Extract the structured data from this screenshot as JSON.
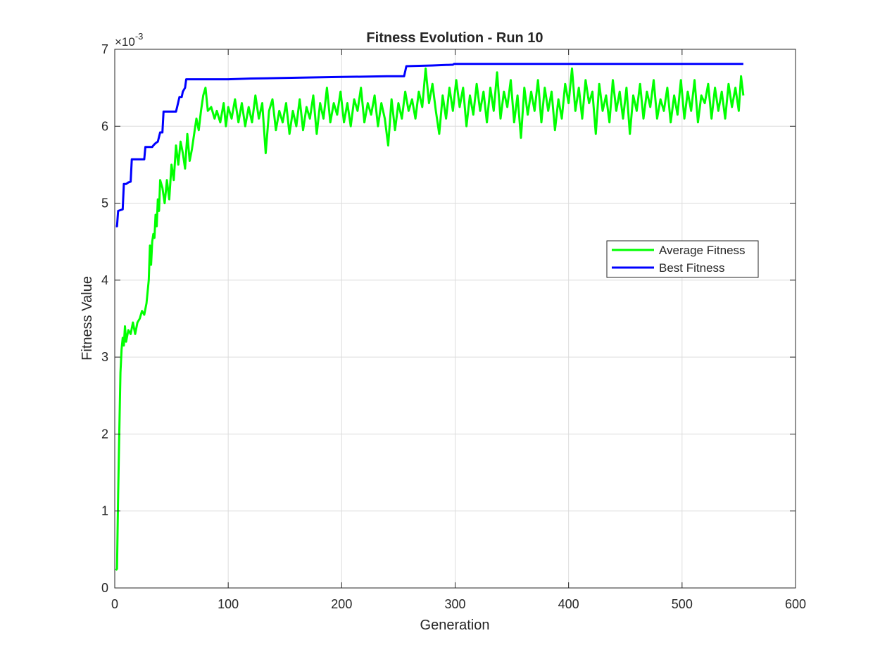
{
  "chart_data": {
    "type": "line",
    "title": "Fitness Evolution - Run 10",
    "xlabel": "Generation",
    "ylabel": "Fitness Value",
    "exponent_label": "×10",
    "exponent_power": "-3",
    "xlim": [
      0,
      600
    ],
    "ylim": [
      0,
      7
    ],
    "xticks": [
      0,
      100,
      200,
      300,
      400,
      500,
      600
    ],
    "yticks": [
      0,
      1,
      2,
      3,
      4,
      5,
      6,
      7
    ],
    "grid": true,
    "legend_position": "right-middle",
    "y_units_note": "values shown in units of 1e-3",
    "series": [
      {
        "name": "Average Fitness",
        "color": "#00ff00",
        "points": [
          [
            1,
            0.23
          ],
          [
            2,
            0.25
          ],
          [
            3,
            1.2
          ],
          [
            4,
            2.0
          ],
          [
            5,
            2.8
          ],
          [
            6,
            3.1
          ],
          [
            7,
            3.25
          ],
          [
            8,
            3.15
          ],
          [
            9,
            3.4
          ],
          [
            10,
            3.2
          ],
          [
            12,
            3.35
          ],
          [
            14,
            3.3
          ],
          [
            16,
            3.45
          ],
          [
            18,
            3.3
          ],
          [
            20,
            3.45
          ],
          [
            22,
            3.5
          ],
          [
            24,
            3.6
          ],
          [
            26,
            3.55
          ],
          [
            28,
            3.7
          ],
          [
            30,
            4.0
          ],
          [
            31,
            4.45
          ],
          [
            32,
            4.2
          ],
          [
            33,
            4.5
          ],
          [
            34,
            4.6
          ],
          [
            35,
            4.55
          ],
          [
            36,
            4.85
          ],
          [
            37,
            4.7
          ],
          [
            38,
            5.05
          ],
          [
            39,
            4.9
          ],
          [
            40,
            5.3
          ],
          [
            42,
            5.2
          ],
          [
            44,
            5.0
          ],
          [
            46,
            5.3
          ],
          [
            48,
            5.05
          ],
          [
            50,
            5.5
          ],
          [
            52,
            5.3
          ],
          [
            54,
            5.75
          ],
          [
            56,
            5.5
          ],
          [
            58,
            5.8
          ],
          [
            60,
            5.65
          ],
          [
            62,
            5.45
          ],
          [
            64,
            5.9
          ],
          [
            66,
            5.55
          ],
          [
            68,
            5.7
          ],
          [
            70,
            5.9
          ],
          [
            72,
            6.1
          ],
          [
            74,
            5.95
          ],
          [
            76,
            6.2
          ],
          [
            78,
            6.4
          ],
          [
            80,
            6.5
          ],
          [
            82,
            6.2
          ],
          [
            85,
            6.25
          ],
          [
            88,
            6.1
          ],
          [
            90,
            6.2
          ],
          [
            93,
            6.05
          ],
          [
            96,
            6.3
          ],
          [
            98,
            6.0
          ],
          [
            100,
            6.25
          ],
          [
            103,
            6.1
          ],
          [
            106,
            6.35
          ],
          [
            109,
            6.05
          ],
          [
            112,
            6.3
          ],
          [
            115,
            6.0
          ],
          [
            118,
            6.25
          ],
          [
            121,
            6.05
          ],
          [
            124,
            6.4
          ],
          [
            127,
            6.1
          ],
          [
            130,
            6.3
          ],
          [
            133,
            5.65
          ],
          [
            136,
            6.2
          ],
          [
            139,
            6.35
          ],
          [
            142,
            5.95
          ],
          [
            145,
            6.2
          ],
          [
            148,
            6.05
          ],
          [
            151,
            6.3
          ],
          [
            154,
            5.9
          ],
          [
            157,
            6.2
          ],
          [
            160,
            6.0
          ],
          [
            163,
            6.35
          ],
          [
            166,
            5.95
          ],
          [
            169,
            6.25
          ],
          [
            172,
            6.1
          ],
          [
            175,
            6.4
          ],
          [
            178,
            5.9
          ],
          [
            181,
            6.3
          ],
          [
            184,
            6.1
          ],
          [
            187,
            6.5
          ],
          [
            190,
            6.05
          ],
          [
            193,
            6.3
          ],
          [
            196,
            6.15
          ],
          [
            199,
            6.45
          ],
          [
            202,
            6.05
          ],
          [
            205,
            6.3
          ],
          [
            208,
            6.0
          ],
          [
            211,
            6.35
          ],
          [
            214,
            6.2
          ],
          [
            217,
            6.5
          ],
          [
            220,
            6.05
          ],
          [
            223,
            6.3
          ],
          [
            226,
            6.15
          ],
          [
            229,
            6.4
          ],
          [
            232,
            6.0
          ],
          [
            235,
            6.3
          ],
          [
            238,
            6.1
          ],
          [
            241,
            5.75
          ],
          [
            244,
            6.35
          ],
          [
            247,
            5.95
          ],
          [
            250,
            6.3
          ],
          [
            253,
            6.1
          ],
          [
            256,
            6.45
          ],
          [
            259,
            6.2
          ],
          [
            262,
            6.35
          ],
          [
            265,
            6.1
          ],
          [
            268,
            6.45
          ],
          [
            271,
            6.25
          ],
          [
            274,
            6.75
          ],
          [
            277,
            6.3
          ],
          [
            280,
            6.55
          ],
          [
            283,
            6.2
          ],
          [
            286,
            5.9
          ],
          [
            289,
            6.4
          ],
          [
            292,
            6.1
          ],
          [
            295,
            6.5
          ],
          [
            298,
            6.2
          ],
          [
            301,
            6.6
          ],
          [
            304,
            6.25
          ],
          [
            307,
            6.5
          ],
          [
            310,
            6.0
          ],
          [
            313,
            6.4
          ],
          [
            316,
            6.15
          ],
          [
            319,
            6.55
          ],
          [
            322,
            6.2
          ],
          [
            325,
            6.45
          ],
          [
            328,
            6.05
          ],
          [
            331,
            6.5
          ],
          [
            334,
            6.2
          ],
          [
            337,
            6.7
          ],
          [
            340,
            6.1
          ],
          [
            343,
            6.45
          ],
          [
            346,
            6.25
          ],
          [
            349,
            6.6
          ],
          [
            352,
            6.05
          ],
          [
            355,
            6.4
          ],
          [
            358,
            5.85
          ],
          [
            361,
            6.5
          ],
          [
            364,
            6.15
          ],
          [
            367,
            6.45
          ],
          [
            370,
            6.2
          ],
          [
            373,
            6.6
          ],
          [
            376,
            6.05
          ],
          [
            379,
            6.5
          ],
          [
            382,
            6.2
          ],
          [
            385,
            6.45
          ],
          [
            388,
            5.95
          ],
          [
            391,
            6.35
          ],
          [
            394,
            6.1
          ],
          [
            397,
            6.55
          ],
          [
            400,
            6.3
          ],
          [
            403,
            6.75
          ],
          [
            406,
            6.2
          ],
          [
            409,
            6.5
          ],
          [
            412,
            6.1
          ],
          [
            415,
            6.6
          ],
          [
            418,
            6.3
          ],
          [
            421,
            6.45
          ],
          [
            424,
            5.9
          ],
          [
            427,
            6.55
          ],
          [
            430,
            6.2
          ],
          [
            433,
            6.4
          ],
          [
            436,
            6.05
          ],
          [
            439,
            6.6
          ],
          [
            442,
            6.2
          ],
          [
            445,
            6.45
          ],
          [
            448,
            6.1
          ],
          [
            451,
            6.5
          ],
          [
            454,
            5.9
          ],
          [
            457,
            6.4
          ],
          [
            460,
            6.2
          ],
          [
            463,
            6.55
          ],
          [
            466,
            6.1
          ],
          [
            469,
            6.45
          ],
          [
            472,
            6.25
          ],
          [
            475,
            6.6
          ],
          [
            478,
            6.1
          ],
          [
            481,
            6.35
          ],
          [
            484,
            6.2
          ],
          [
            487,
            6.5
          ],
          [
            490,
            6.05
          ],
          [
            493,
            6.4
          ],
          [
            496,
            6.15
          ],
          [
            499,
            6.6
          ],
          [
            502,
            6.1
          ],
          [
            505,
            6.45
          ],
          [
            508,
            6.2
          ],
          [
            511,
            6.6
          ],
          [
            514,
            6.05
          ],
          [
            517,
            6.4
          ],
          [
            520,
            6.3
          ],
          [
            523,
            6.55
          ],
          [
            526,
            6.1
          ],
          [
            529,
            6.5
          ],
          [
            532,
            6.2
          ],
          [
            535,
            6.45
          ],
          [
            538,
            6.1
          ],
          [
            541,
            6.55
          ],
          [
            544,
            6.25
          ],
          [
            547,
            6.5
          ],
          [
            550,
            6.2
          ],
          [
            552,
            6.65
          ],
          [
            554,
            6.4
          ]
        ]
      },
      {
        "name": "Best Fitness",
        "color": "#0000ff",
        "points": [
          [
            1,
            4.7
          ],
          [
            2,
            4.7
          ],
          [
            3,
            4.9
          ],
          [
            7,
            4.92
          ],
          [
            8,
            5.25
          ],
          [
            10,
            5.25
          ],
          [
            12,
            5.27
          ],
          [
            14,
            5.28
          ],
          [
            15,
            5.57
          ],
          [
            26,
            5.57
          ],
          [
            27,
            5.73
          ],
          [
            33,
            5.73
          ],
          [
            34,
            5.75
          ],
          [
            36,
            5.78
          ],
          [
            38,
            5.8
          ],
          [
            40,
            5.92
          ],
          [
            42,
            5.92
          ],
          [
            43,
            6.19
          ],
          [
            54,
            6.19
          ],
          [
            55,
            6.25
          ],
          [
            57,
            6.38
          ],
          [
            59,
            6.38
          ],
          [
            60,
            6.45
          ],
          [
            62,
            6.5
          ],
          [
            63,
            6.61
          ],
          [
            100,
            6.61
          ],
          [
            120,
            6.62
          ],
          [
            160,
            6.63
          ],
          [
            200,
            6.64
          ],
          [
            240,
            6.65
          ],
          [
            255,
            6.65
          ],
          [
            257,
            6.78
          ],
          [
            280,
            6.79
          ],
          [
            298,
            6.8
          ],
          [
            299,
            6.81
          ],
          [
            400,
            6.81
          ],
          [
            554,
            6.81
          ]
        ]
      }
    ]
  }
}
